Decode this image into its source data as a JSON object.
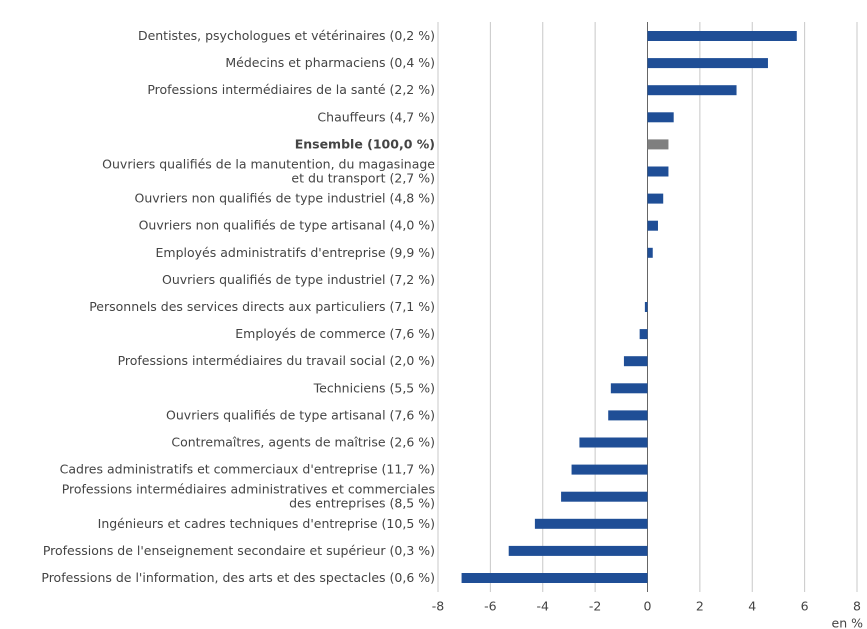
{
  "chart_data": {
    "type": "barh",
    "categories": [
      "Dentistes, psychologues et vétérinaires (0,2 %)",
      "Médecins et pharmaciens (0,4 %)",
      "Professions intermédiaires de la santé (2,2 %)",
      "Chauffeurs (4,7 %)",
      "Ensemble (100,0 %)",
      "Ouvriers qualifiés de la manutention, du magasinage\net du transport (2,7 %)",
      "Ouvriers non qualifiés de type industriel (4,8 %)",
      "Ouvriers non qualifiés de type artisanal (4,0 %)",
      "Employés administratifs d'entreprise (9,9 %)",
      "Ouvriers qualifiés de type industriel (7,2 %)",
      "Personnels des services directs aux particuliers (7,1 %)",
      "Employés de commerce (7,6 %)",
      "Professions intermédiaires du travail social (2,0 %)",
      "Techniciens (5,5 %)",
      "Ouvriers qualifiés de type artisanal (7,6 %)",
      "Contremaîtres, agents de maîtrise (2,6 %)",
      "Cadres administratifs et commerciaux d'entreprise (11,7 %)",
      "Professions intermédiaires administratives et commerciales\ndes entreprises (8,5 %)",
      "Ingénieurs et cadres techniques d'entreprise (10,5 %)",
      "Professions de l'enseignement secondaire et supérieur (0,3 %)",
      "Professions de l'information, des arts et des spectacles (0,6 %)"
    ],
    "values": [
      5.7,
      4.6,
      3.4,
      1.0,
      0.8,
      0.8,
      0.6,
      0.4,
      0.2,
      0.0,
      -0.1,
      -0.3,
      -0.9,
      -1.4,
      -1.5,
      -2.6,
      -2.9,
      -3.3,
      -4.3,
      -5.3,
      -7.1
    ],
    "color": "#1f4e96",
    "highlight": 4,
    "highlight_color": "#7f7f7f",
    "xlim": [
      -8,
      8
    ],
    "xticks": [
      -8,
      -6,
      -4,
      -2,
      0,
      2,
      4,
      6,
      8
    ],
    "xlabel": "en %",
    "grid": true
  }
}
